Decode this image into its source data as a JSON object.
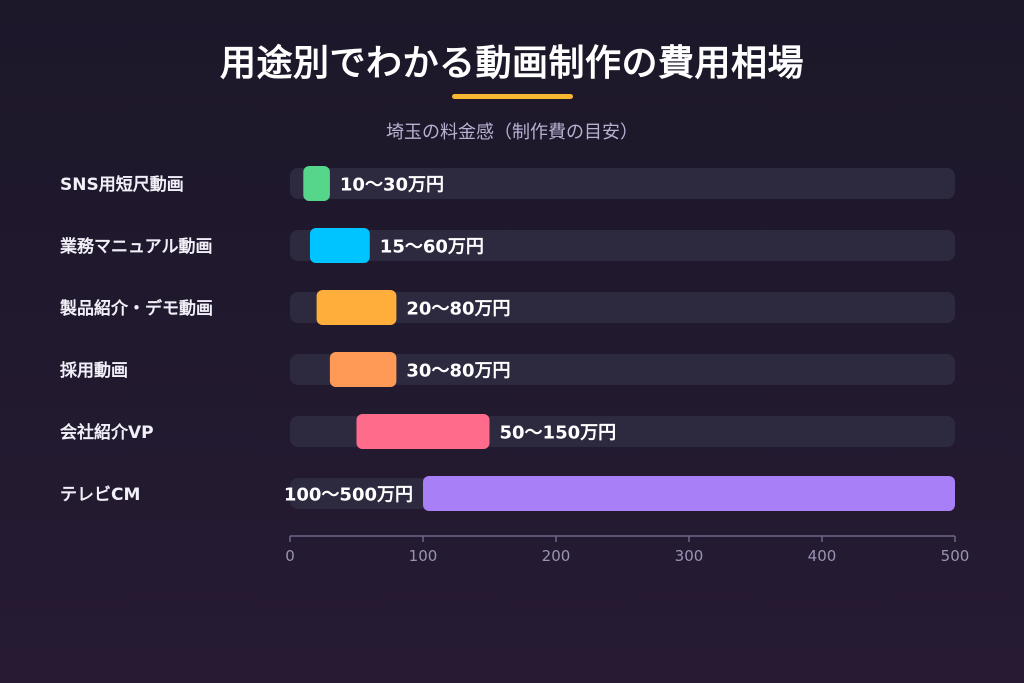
{
  "header": {
    "title": "用途別でわかる動画制作の費用相場",
    "subtitle": "埼玉の料金感（制作費の目安）"
  },
  "chart_data": {
    "type": "bar",
    "orientation": "horizontal",
    "unit": "万円",
    "categories": [
      "SNS用短尺動画",
      "業務マニュアル動画",
      "製品紹介・デモ動画",
      "採用動画",
      "会社紹介VP",
      "テレビCM"
    ],
    "ranges": [
      [
        10,
        30
      ],
      [
        15,
        60
      ],
      [
        20,
        80
      ],
      [
        30,
        80
      ],
      [
        50,
        150
      ],
      [
        100,
        500
      ]
    ],
    "value_labels": [
      "10〜30万円",
      "15〜60万円",
      "20〜80万円",
      "30〜80万円",
      "50〜150万円",
      "100〜500万円"
    ],
    "colors": [
      "#55d68b",
      "#00c4ff",
      "#ffad3b",
      "#ff9a56",
      "#ff6b8a",
      "#a97ff8"
    ],
    "xlim": [
      0,
      500
    ],
    "xticks": [
      0,
      100,
      200,
      300,
      400,
      500
    ],
    "grid": false,
    "legend": "none"
  }
}
